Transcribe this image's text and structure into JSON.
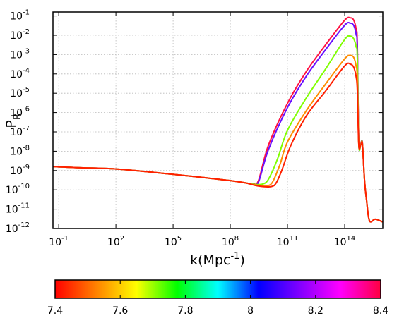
{
  "chart_data": {
    "type": "line",
    "title": "",
    "xlabel": "k(Mpc",
    "xlabel_exponent": "-1",
    "xlabel_suffix": ")",
    "ylabel": "P",
    "ylabel_subscript": "R",
    "x_scale": "log",
    "y_scale": "log",
    "xlim": [
      0.05,
      1e+16
    ],
    "ylim": [
      1e-12,
      0.16
    ],
    "x_ticks": [
      {
        "value": 0.1,
        "base": "10",
        "exp": "-1"
      },
      {
        "value": 100,
        "base": "10",
        "exp": "2"
      },
      {
        "value": 100000,
        "base": "10",
        "exp": "5"
      },
      {
        "value": 100000000.0,
        "base": "10",
        "exp": "8"
      },
      {
        "value": 100000000000.0,
        "base": "10",
        "exp": "11"
      },
      {
        "value": 100000000000000.0,
        "base": "10",
        "exp": "14"
      }
    ],
    "y_ticks": [
      {
        "value": 1e-12,
        "base": "10",
        "exp": "-12"
      },
      {
        "value": 1e-11,
        "base": "10",
        "exp": "-11"
      },
      {
        "value": 1e-10,
        "base": "10",
        "exp": "-10"
      },
      {
        "value": 1e-09,
        "base": "10",
        "exp": "-9"
      },
      {
        "value": 1e-08,
        "base": "10",
        "exp": "-8"
      },
      {
        "value": 1e-07,
        "base": "10",
        "exp": "-7"
      },
      {
        "value": 1e-06,
        "base": "10",
        "exp": "-6"
      },
      {
        "value": 1e-05,
        "base": "10",
        "exp": "-5"
      },
      {
        "value": 0.0001,
        "base": "10",
        "exp": "-4"
      },
      {
        "value": 0.001,
        "base": "10",
        "exp": "-3"
      },
      {
        "value": 0.01,
        "base": "10",
        "exp": "-2"
      },
      {
        "value": 0.1,
        "base": "10",
        "exp": "-1"
      }
    ],
    "grid": true,
    "colorbar": {
      "ticks": [
        "7.4",
        "7.6",
        "7.8",
        "8",
        "8.2",
        "8.4"
      ],
      "range": [
        7.4,
        8.4
      ],
      "stops": [
        "#ff0000",
        "#ff8000",
        "#ffff00",
        "#00ff00",
        "#00ffff",
        "#0000ff",
        "#8000ff",
        "#ff00ff",
        "#ff0040"
      ]
    },
    "series": [
      {
        "color": "#ff1040",
        "x": [
          0.05,
          1,
          100.0,
          10000.0,
          1000000.0,
          100000000.0,
          600000000.0,
          1500000000.0,
          3000000000.0,
          10000000000.0,
          100000000000.0,
          1000000000000.0,
          10000000000000.0,
          100000000000000.0,
          200000000000000.0,
          300000000000000.0,
          400000000000000.0,
          460000000000000.0,
          550000000000000.0,
          700000000000000.0,
          850000000000000.0,
          1100000000000000.0,
          1400000000000000.0,
          2000000000000000.0,
          4000000000000000.0,
          1e+16
        ],
        "y": [
          1.6e-09,
          1.4e-09,
          1.2e-09,
          8e-10,
          5e-10,
          3e-10,
          2.3e-10,
          2.1e-10,
          3e-10,
          2e-08,
          3e-06,
          0.00014,
          0.0032,
          0.06,
          0.08,
          0.06,
          0.02,
          0.0035,
          2.8e-08,
          2.5e-08,
          2.7e-08,
          3e-10,
          3e-11,
          2.5e-12,
          3e-12,
          2.2e-12
        ]
      },
      {
        "color": "#6a10ff",
        "x": [
          0.05,
          1,
          100.0,
          10000.0,
          1000000.0,
          100000000.0,
          600000000.0,
          1500000000.0,
          3000000000.0,
          10000000000.0,
          100000000000.0,
          1000000000000.0,
          10000000000000.0,
          100000000000000.0,
          200000000000000.0,
          300000000000000.0,
          400000000000000.0,
          460000000000000.0,
          550000000000000.0,
          700000000000000.0,
          850000000000000.0,
          1100000000000000.0,
          1400000000000000.0,
          2000000000000000.0,
          4000000000000000.0,
          1e+16
        ],
        "y": [
          1.6e-09,
          1.4e-09,
          1.2e-09,
          8e-10,
          5e-10,
          3e-10,
          2.3e-10,
          2e-10,
          2.5e-10,
          1.2e-08,
          1.8e-06,
          8e-05,
          0.0018,
          0.033,
          0.042,
          0.032,
          0.011,
          0.002,
          2.6e-08,
          2.4e-08,
          2.6e-08,
          3e-10,
          3e-11,
          2.5e-12,
          3e-12,
          2.2e-12
        ]
      },
      {
        "color": "#80ff00",
        "x": [
          0.05,
          1,
          100.0,
          10000.0,
          1000000.0,
          100000000.0,
          600000000.0,
          2000000000.0,
          5000000000.0,
          10000000000.0,
          30000000000.0,
          100000000000.0,
          1000000000000.0,
          10000000000000.0,
          100000000000000.0,
          200000000000000.0,
          300000000000000.0,
          400000000000000.0,
          460000000000000.0,
          550000000000000.0,
          700000000000000.0,
          850000000000000.0,
          1100000000000000.0,
          1400000000000000.0,
          2000000000000000.0,
          4000000000000000.0,
          1e+16
        ],
        "y": [
          1.6e-09,
          1.4e-09,
          1.2e-09,
          8e-10,
          5e-10,
          3e-10,
          2.3e-10,
          1.9e-10,
          2e-10,
          3.5e-10,
          4e-09,
          1.2e-07,
          6e-06,
          0.00018,
          0.006,
          0.009,
          0.0065,
          0.0025,
          0.0007,
          2.4e-08,
          2.3e-08,
          2.5e-08,
          3e-10,
          3e-11,
          2.5e-12,
          3e-12,
          2.2e-12
        ]
      },
      {
        "color": "#ff8c00",
        "x": [
          0.05,
          1,
          100.0,
          10000.0,
          1000000.0,
          100000000.0,
          600000000.0,
          2000000000.0,
          6000000000.0,
          15000000000.0,
          40000000000.0,
          100000000000.0,
          1000000000000.0,
          10000000000000.0,
          100000000000000.0,
          200000000000000.0,
          300000000000000.0,
          400000000000000.0,
          460000000000000.0,
          550000000000000.0,
          700000000000000.0,
          850000000000000.0,
          1100000000000000.0,
          1400000000000000.0,
          2000000000000000.0,
          4000000000000000.0,
          1e+16
        ],
        "y": [
          1.6e-09,
          1.4e-09,
          1.2e-09,
          8e-10,
          5e-10,
          3e-10,
          2.3e-10,
          1.8e-10,
          1.7e-10,
          2.2e-10,
          2e-09,
          3e-08,
          1.3e-06,
          3e-05,
          0.0006,
          0.0009,
          0.0007,
          0.00025,
          6e-05,
          2.3e-08,
          2.2e-08,
          2.4e-08,
          3e-10,
          3e-11,
          2.5e-12,
          3e-12,
          2.2e-12
        ]
      },
      {
        "color": "#ff2000",
        "x": [
          0.05,
          1,
          100.0,
          10000.0,
          1000000.0,
          100000000.0,
          600000000.0,
          2000000000.0,
          6000000000.0,
          15000000000.0,
          25000000000.0,
          50000000000.0,
          150000000000.0,
          1000000000000.0,
          10000000000000.0,
          100000000000000.0,
          200000000000000.0,
          300000000000000.0,
          400000000000000.0,
          460000000000000.0,
          550000000000000.0,
          700000000000000.0,
          850000000000000.0,
          1100000000000000.0,
          1400000000000000.0,
          2000000000000000.0,
          4000000000000000.0,
          1e+16
        ],
        "y": [
          1.6e-09,
          1.4e-09,
          1.2e-09,
          8e-10,
          5e-10,
          3e-10,
          2.3e-10,
          1.7e-10,
          1.45e-10,
          1.5e-10,
          2.2e-10,
          1e-09,
          2e-08,
          7e-07,
          1.3e-05,
          0.00026,
          0.00032,
          0.00022,
          7e-05,
          1.5e-05,
          2.2e-08,
          2.1e-08,
          2.3e-08,
          3e-10,
          3e-11,
          2.5e-12,
          3e-12,
          2.2e-12
        ]
      }
    ]
  }
}
